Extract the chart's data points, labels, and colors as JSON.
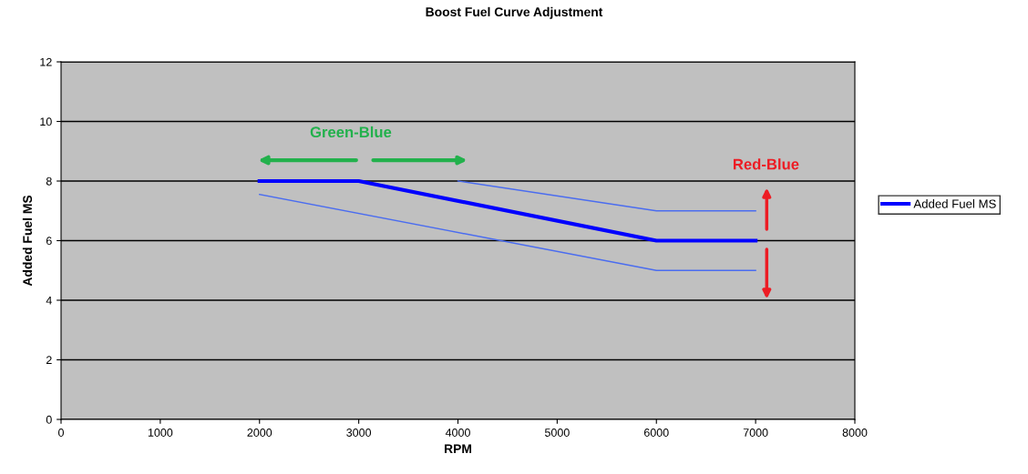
{
  "chart_data": {
    "type": "line",
    "title": "Boost Fuel Curve Adjustment",
    "xlabel": "RPM",
    "ylabel": "Added Fuel MS",
    "series": [
      {
        "name": "Added Fuel MS",
        "color": "#0000ff",
        "x": [
          2000,
          3000,
          6000,
          7000
        ],
        "values": [
          8,
          8,
          6,
          6
        ]
      },
      {
        "color": "#4a6cf0",
        "x": [
          4000,
          6000,
          7000
        ],
        "values": [
          8,
          7,
          7
        ]
      },
      {
        "color": "#4a6cf0",
        "x": [
          2000,
          6000,
          7000
        ],
        "values": [
          7.55,
          5,
          5
        ]
      }
    ],
    "annotations": [
      "Green-Blue",
      "Red-Blue"
    ],
    "xlim": [
      0,
      8000
    ],
    "xticks": [
      0,
      1000,
      2000,
      3000,
      4000,
      5000,
      6000,
      7000,
      8000
    ],
    "ylim": [
      0,
      12
    ],
    "yticks": [
      0,
      2,
      4,
      6,
      8,
      10,
      12
    ],
    "grid": "y",
    "legend": "right",
    "marker": "none",
    "line_style": "solid"
  }
}
